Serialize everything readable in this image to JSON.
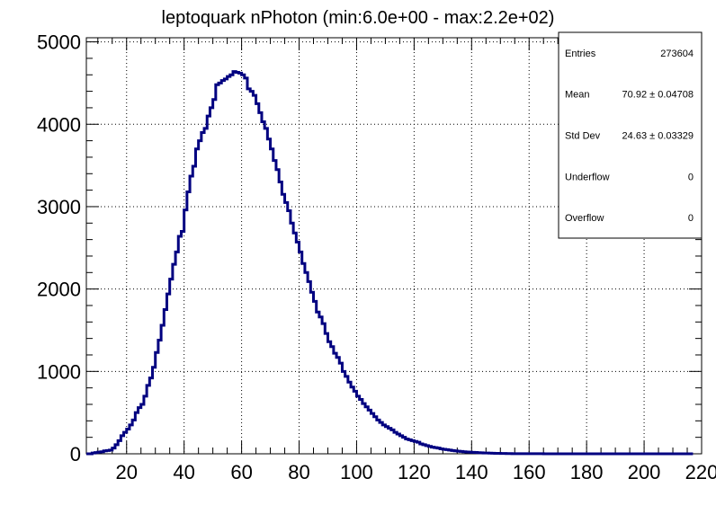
{
  "chart_data": {
    "type": "histogram",
    "title": "leptoquark nPhoton (min:6.0e+00 - max:2.2e+02)",
    "xlabel": "",
    "ylabel": "",
    "xlim": [
      6,
      220
    ],
    "ylim": [
      0,
      5050
    ],
    "x_ticks": [
      20,
      40,
      60,
      80,
      100,
      120,
      140,
      160,
      180,
      200,
      220
    ],
    "y_ticks": [
      0,
      1000,
      2000,
      3000,
      4000,
      5000
    ],
    "x_tick_labels": [
      "20",
      "40",
      "60",
      "80",
      "100",
      "120",
      "140",
      "160",
      "180",
      "200",
      "220"
    ],
    "y_tick_labels": [
      "0",
      "1000",
      "2000",
      "3000",
      "4000",
      "5000"
    ],
    "grid": true,
    "line_color": "#000080",
    "bin_width": 1,
    "series": [
      {
        "x_start": 6,
        "values": [
          0,
          0,
          10,
          15,
          20,
          25,
          35,
          40,
          45,
          70,
          110,
          160,
          220,
          260,
          300,
          350,
          410,
          500,
          560,
          600,
          700,
          830,
          920,
          1050,
          1230,
          1380,
          1560,
          1750,
          1940,
          2120,
          2300,
          2450,
          2640,
          2700,
          2960,
          3180,
          3370,
          3490,
          3700,
          3800,
          3900,
          3950,
          4100,
          4200,
          4300,
          4480,
          4500,
          4530,
          4550,
          4580,
          4600,
          4640,
          4630,
          4620,
          4600,
          4560,
          4430,
          4400,
          4350,
          4250,
          4140,
          4030,
          3950,
          3820,
          3700,
          3560,
          3450,
          3300,
          3150,
          3050,
          2950,
          2800,
          2680,
          2570,
          2450,
          2310,
          2200,
          2090,
          1960,
          1850,
          1720,
          1660,
          1580,
          1460,
          1360,
          1300,
          1220,
          1170,
          1100,
          1000,
          940,
          870,
          810,
          760,
          700,
          660,
          610,
          570,
          530,
          490,
          450,
          410,
          380,
          350,
          330,
          310,
          290,
          260,
          240,
          220,
          200,
          180,
          170,
          160,
          150,
          140,
          120,
          110,
          100,
          90,
          80,
          75,
          70,
          60,
          55,
          50,
          45,
          40,
          36,
          32,
          28,
          25,
          22,
          20,
          18,
          16,
          14,
          12,
          10,
          9,
          8,
          7,
          6,
          5,
          4,
          4,
          3,
          3,
          2,
          2,
          2,
          1,
          1,
          1,
          1,
          1,
          1,
          1,
          1,
          0,
          0,
          0,
          0,
          0,
          0,
          0,
          0,
          0,
          0,
          0,
          0,
          0,
          0,
          0,
          0,
          0,
          0,
          0,
          0,
          0,
          0,
          0,
          0,
          0,
          0,
          0,
          0,
          0,
          0,
          0,
          0,
          0,
          0,
          0,
          0,
          0,
          0,
          0,
          0,
          0,
          0,
          0,
          0,
          0,
          0,
          0,
          0,
          0,
          0,
          0,
          0
        ]
      }
    ],
    "stats_box": {
      "rows": [
        {
          "label": "Entries",
          "value": "273604"
        },
        {
          "label": "Mean",
          "value": "70.92 ± 0.04708"
        },
        {
          "label": "Std Dev",
          "value": "24.63 ± 0.03329"
        },
        {
          "label": "Underflow",
          "value": "0"
        },
        {
          "label": "Overflow",
          "value": "0"
        }
      ]
    }
  }
}
